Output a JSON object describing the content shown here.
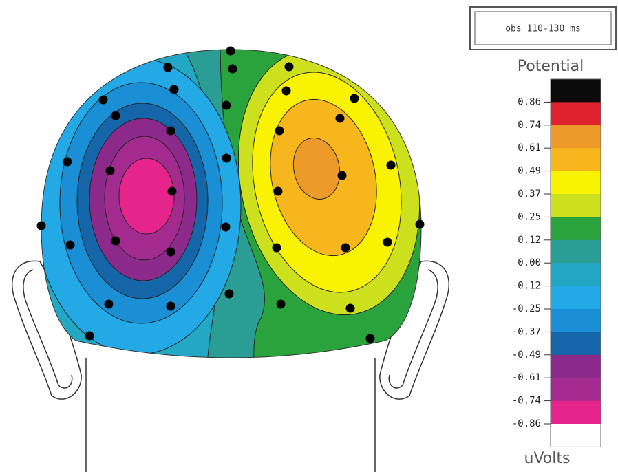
{
  "chart_data": {
    "type": "contour",
    "header": "obs 110-130 ms",
    "colorbar": {
      "title": "Potential",
      "unit": "uVolts",
      "ticks": [
        0.86,
        0.74,
        0.61,
        0.49,
        0.37,
        0.25,
        0.12,
        {
          "value": 0,
          "label": "0.00"
        },
        -0.12,
        -0.25,
        -0.37,
        -0.49,
        -0.61,
        -0.74,
        -0.86
      ],
      "colors": [
        "#0a0a0a",
        "#e0222e",
        "#ee9a2a",
        "#f7b61c",
        "#f9f200",
        "#cde01e",
        "#2ba33c",
        "#2a9e95",
        "#22a8c4",
        "#22a9e6",
        "#1a8fd6",
        "#1566a8",
        "#8c2a8c",
        "#a32a8e",
        "#e6258c",
        "#ffffff"
      ]
    }
  }
}
